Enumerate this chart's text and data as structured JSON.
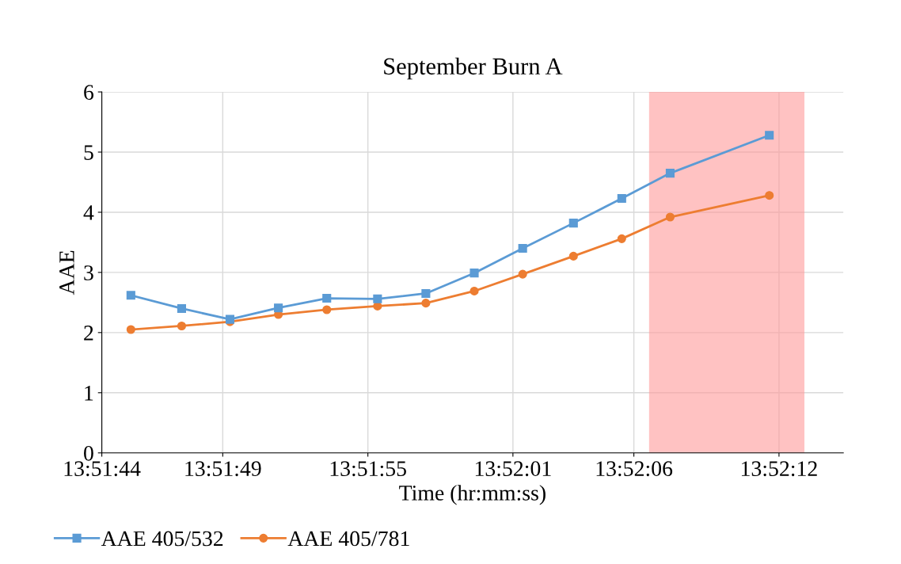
{
  "chart_data": {
    "type": "line",
    "title": "September Burn A",
    "xlabel": "Time (hr:mm:ss)",
    "ylabel": "AAE",
    "x": [
      13.862556,
      13.863139,
      13.863694,
      13.86425,
      13.864806,
      13.865389,
      13.865944,
      13.8665,
      13.867056,
      13.867639,
      13.868194,
      13.86875,
      13.869889
    ],
    "series": [
      {
        "name": "AAE 405/532",
        "color": "#5b9bd5",
        "marker": "square",
        "values": [
          2.62,
          2.4,
          2.22,
          2.41,
          2.57,
          2.56,
          2.65,
          2.99,
          3.4,
          3.82,
          4.23,
          4.65,
          5.28
        ]
      },
      {
        "name": "AAE 405/781",
        "color": "#ed7d31",
        "marker": "circle",
        "values": [
          2.05,
          2.11,
          2.18,
          2.3,
          2.38,
          2.44,
          2.49,
          2.69,
          2.97,
          3.27,
          3.56,
          3.92,
          4.28
        ]
      }
    ],
    "xlim": [
      13.862222,
      13.870739
    ],
    "xticks": [
      {
        "value": 13.862222,
        "label": "13:51:44"
      },
      {
        "value": 13.863611,
        "label": "13:51:49"
      },
      {
        "value": 13.865278,
        "label": "13:51:55"
      },
      {
        "value": 13.866944,
        "label": "13:52:01"
      },
      {
        "value": 13.868333,
        "label": "13:52:06"
      },
      {
        "value": 13.87,
        "label": "13:52:12"
      }
    ],
    "ylim": [
      0,
      6
    ],
    "yticks": [
      0,
      1,
      2,
      3,
      4,
      5,
      6
    ],
    "bands": [
      {
        "axis": "x",
        "from": 13.868508,
        "to": 13.870292,
        "color": "#ff9999"
      }
    ],
    "grid": true,
    "legend": "bottom left",
    "line_style": "solid"
  }
}
